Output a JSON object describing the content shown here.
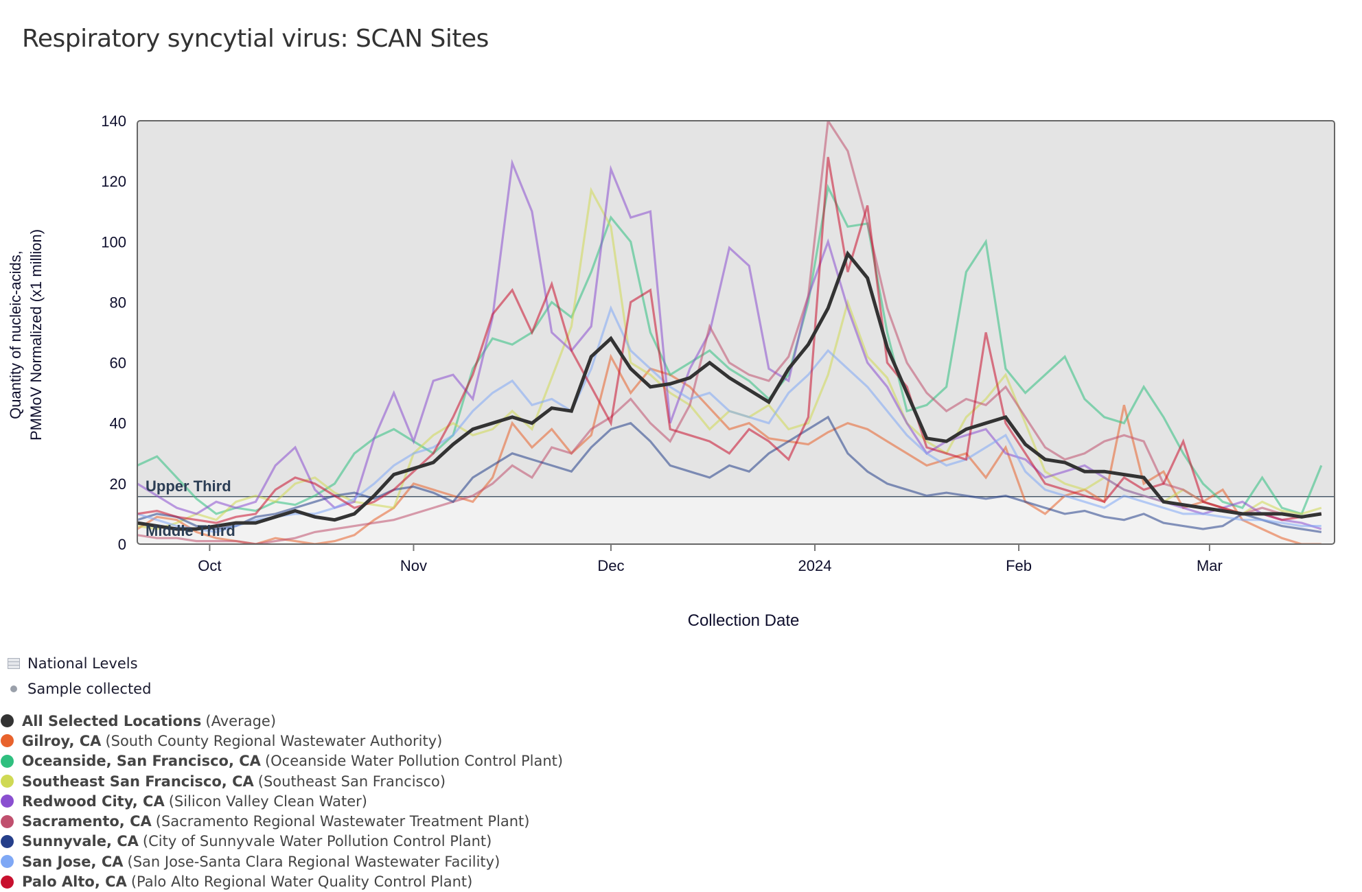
{
  "page": {
    "title": "Respiratory syncytial virus: SCAN Sites"
  },
  "legend": {
    "national_levels": "National Levels",
    "sample_collected": "Sample collected",
    "series": [
      {
        "name": "All Selected Locations",
        "sub": "(Average)",
        "color": "#333333"
      },
      {
        "name": "Gilroy, CA",
        "sub": "(South County Regional Wastewater Authority)",
        "color": "#e8622c"
      },
      {
        "name": "Oceanside, San Francisco, CA",
        "sub": "(Oceanside Water Pollution Control Plant)",
        "color": "#2fbf7f"
      },
      {
        "name": "Southeast San Francisco, CA",
        "sub": "(Southeast San Francisco)",
        "color": "#cfd954"
      },
      {
        "name": "Redwood City, CA",
        "sub": "(Silicon Valley Clean Water)",
        "color": "#8a4fd0"
      },
      {
        "name": "Sacramento, CA",
        "sub": "(Sacramento Regional Wastewater Treatment Plant)",
        "color": "#c0506e"
      },
      {
        "name": "Sunnyvale, CA",
        "sub": "(City of Sunnyvale Water Pollution Control Plant)",
        "color": "#253f8a"
      },
      {
        "name": "San Jose, CA",
        "sub": "(San Jose-Santa Clara Regional Wastewater Facility)",
        "color": "#7fa8f5"
      },
      {
        "name": "Palo Alto, CA",
        "sub": "(Palo Alto Regional Water Quality Control Plant)",
        "color": "#c8102e"
      }
    ]
  },
  "chart_data": {
    "type": "line",
    "title": "Respiratory syncytial virus: SCAN Sites",
    "xlabel": "Collection Date",
    "ylabel": "Quantity of nucleic-acids, PMMoV Normalized (x1 million)",
    "ylabel_lines": [
      "Quantity of nucleic-acids,",
      "PMMoV Normalized (x1 million)"
    ],
    "xlim": [
      "2023-09-20",
      "2024-03-20"
    ],
    "ylim": [
      0,
      140
    ],
    "yticks": [
      0,
      20,
      40,
      60,
      80,
      100,
      120,
      140
    ],
    "xticks": [
      {
        "date": "2023-10-01",
        "label": "Oct"
      },
      {
        "date": "2023-11-01",
        "label": "Nov"
      },
      {
        "date": "2023-12-01",
        "label": "Dec"
      },
      {
        "date": "2024-01-01",
        "label": "2024"
      },
      {
        "date": "2024-02-01",
        "label": "Feb"
      },
      {
        "date": "2024-03-01",
        "label": "Mar"
      }
    ],
    "grid": false,
    "bands": [
      {
        "label": "Upper Third",
        "from": 15.7,
        "to": 140,
        "color": "#e4e4e4"
      },
      {
        "label": "Middle Third",
        "from": 0,
        "to": 15.7,
        "color": "#f2f2f2"
      }
    ],
    "x": [
      "2023-09-20",
      "2023-09-23",
      "2023-09-26",
      "2023-09-29",
      "2023-10-02",
      "2023-10-05",
      "2023-10-08",
      "2023-10-11",
      "2023-10-14",
      "2023-10-17",
      "2023-10-20",
      "2023-10-23",
      "2023-10-26",
      "2023-10-29",
      "2023-11-01",
      "2023-11-04",
      "2023-11-07",
      "2023-11-10",
      "2023-11-13",
      "2023-11-16",
      "2023-11-19",
      "2023-11-22",
      "2023-11-25",
      "2023-11-28",
      "2023-12-01",
      "2023-12-04",
      "2023-12-07",
      "2023-12-10",
      "2023-12-13",
      "2023-12-16",
      "2023-12-19",
      "2023-12-22",
      "2023-12-25",
      "2023-12-28",
      "2023-12-31",
      "2024-01-03",
      "2024-01-06",
      "2024-01-09",
      "2024-01-12",
      "2024-01-15",
      "2024-01-18",
      "2024-01-21",
      "2024-01-24",
      "2024-01-27",
      "2024-01-30",
      "2024-02-02",
      "2024-02-05",
      "2024-02-08",
      "2024-02-11",
      "2024-02-14",
      "2024-02-17",
      "2024-02-20",
      "2024-02-23",
      "2024-02-26",
      "2024-02-29",
      "2024-03-03",
      "2024-03-06",
      "2024-03-09",
      "2024-03-12",
      "2024-03-15",
      "2024-03-18"
    ],
    "series": [
      {
        "name": "Gilroy, CA",
        "color": "#e8622c",
        "values": [
          5,
          9,
          8,
          4,
          2,
          1,
          0,
          2,
          1,
          0,
          1,
          3,
          8,
          12,
          20,
          18,
          16,
          14,
          22,
          40,
          32,
          38,
          30,
          36,
          62,
          50,
          58,
          56,
          52,
          45,
          38,
          40,
          35,
          34,
          33,
          37,
          40,
          38,
          34,
          30,
          26,
          28,
          30,
          22,
          32,
          14,
          10,
          16,
          18,
          14,
          46,
          20,
          24,
          12,
          14,
          18,
          8,
          5,
          2,
          0,
          0
        ]
      },
      {
        "name": "Oceanside, San Francisco, CA",
        "color": "#2fbf7f",
        "values": [
          26,
          29,
          22,
          15,
          10,
          12,
          11,
          14,
          13,
          16,
          20,
          30,
          35,
          38,
          34,
          30,
          36,
          58,
          68,
          66,
          70,
          80,
          75,
          90,
          108,
          100,
          70,
          56,
          60,
          64,
          58,
          54,
          48,
          56,
          80,
          118,
          105,
          106,
          70,
          44,
          46,
          52,
          90,
          100,
          58,
          50,
          56,
          62,
          48,
          42,
          40,
          52,
          42,
          30,
          20,
          14,
          12,
          22,
          12,
          10,
          26
        ]
      },
      {
        "name": "Southeast San Francisco, CA",
        "color": "#cfd954",
        "values": [
          6,
          5,
          7,
          10,
          8,
          14,
          16,
          14,
          20,
          22,
          17,
          14,
          13,
          12,
          30,
          36,
          40,
          36,
          38,
          44,
          38,
          55,
          72,
          117,
          105,
          60,
          56,
          50,
          46,
          38,
          44,
          42,
          46,
          38,
          40,
          56,
          80,
          62,
          55,
          40,
          34,
          30,
          42,
          48,
          56,
          40,
          24,
          20,
          18,
          22,
          18,
          16,
          14,
          18,
          14,
          12,
          10,
          14,
          11,
          10,
          12
        ]
      },
      {
        "name": "Redwood City, CA",
        "color": "#8a4fd0",
        "values": [
          20,
          16,
          12,
          10,
          14,
          12,
          14,
          26,
          32,
          18,
          12,
          14,
          35,
          50,
          34,
          54,
          56,
          48,
          75,
          126,
          110,
          70,
          64,
          72,
          124,
          108,
          110,
          40,
          58,
          70,
          98,
          92,
          58,
          54,
          82,
          100,
          78,
          60,
          52,
          40,
          30,
          34,
          36,
          38,
          30,
          28,
          22,
          24,
          26,
          22,
          18,
          16,
          14,
          12,
          10,
          12,
          14,
          10,
          8,
          7,
          5
        ]
      },
      {
        "name": "Sacramento, CA",
        "color": "#c0506e",
        "values": [
          3,
          2,
          2,
          1,
          1,
          1,
          0,
          1,
          2,
          4,
          5,
          6,
          7,
          8,
          10,
          12,
          14,
          16,
          20,
          26,
          22,
          32,
          30,
          38,
          42,
          48,
          40,
          34,
          46,
          72,
          60,
          56,
          54,
          62,
          82,
          140,
          130,
          106,
          78,
          60,
          50,
          44,
          48,
          46,
          52,
          42,
          32,
          28,
          30,
          34,
          36,
          34,
          20,
          18,
          14,
          12,
          10,
          12,
          10,
          9,
          10
        ]
      },
      {
        "name": "Sunnyvale, CA",
        "color": "#253f8a",
        "values": [
          8,
          10,
          9,
          6,
          5,
          6,
          9,
          10,
          12,
          14,
          16,
          17,
          15,
          18,
          19,
          17,
          14,
          22,
          26,
          30,
          28,
          26,
          24,
          32,
          38,
          40,
          34,
          26,
          24,
          22,
          26,
          24,
          30,
          34,
          38,
          42,
          30,
          24,
          20,
          18,
          16,
          17,
          16,
          15,
          16,
          14,
          12,
          10,
          11,
          9,
          8,
          10,
          7,
          6,
          5,
          6,
          10,
          8,
          6,
          5,
          4
        ]
      },
      {
        "name": "San Jose, CA",
        "color": "#7fa8f5",
        "values": [
          10,
          8,
          6,
          5,
          4,
          6,
          8,
          9,
          10,
          10,
          12,
          15,
          20,
          26,
          30,
          32,
          36,
          44,
          50,
          54,
          46,
          48,
          44,
          58,
          78,
          64,
          58,
          52,
          48,
          50,
          44,
          42,
          40,
          50,
          56,
          64,
          58,
          52,
          44,
          36,
          30,
          26,
          28,
          32,
          36,
          24,
          18,
          16,
          14,
          12,
          16,
          14,
          12,
          10,
          10,
          9,
          8,
          8,
          7,
          6,
          6
        ]
      },
      {
        "name": "Palo Alto, CA",
        "color": "#c8102e",
        "values": [
          10,
          11,
          9,
          8,
          7,
          9,
          10,
          18,
          22,
          20,
          16,
          12,
          14,
          18,
          24,
          30,
          42,
          56,
          76,
          84,
          70,
          86,
          64,
          52,
          40,
          80,
          84,
          38,
          36,
          34,
          30,
          38,
          34,
          28,
          42,
          128,
          90,
          112,
          60,
          52,
          32,
          30,
          28,
          70,
          40,
          30,
          20,
          18,
          16,
          14,
          22,
          18,
          20,
          34,
          14,
          12,
          10,
          10,
          8,
          9,
          10
        ]
      },
      {
        "name": "All Selected Locations",
        "color": "#333333",
        "values": [
          7,
          6,
          5,
          5,
          6,
          7,
          7,
          9,
          11,
          9,
          8,
          10,
          16,
          23,
          25,
          27,
          33,
          38,
          40,
          42,
          40,
          45,
          44,
          62,
          68,
          58,
          52,
          53,
          55,
          60,
          55,
          51,
          47,
          58,
          66,
          78,
          96,
          88,
          65,
          50,
          35,
          34,
          38,
          40,
          42,
          33,
          28,
          27,
          24,
          24,
          23,
          22,
          14,
          13,
          12,
          11,
          10,
          10,
          10,
          9,
          10
        ]
      }
    ]
  }
}
